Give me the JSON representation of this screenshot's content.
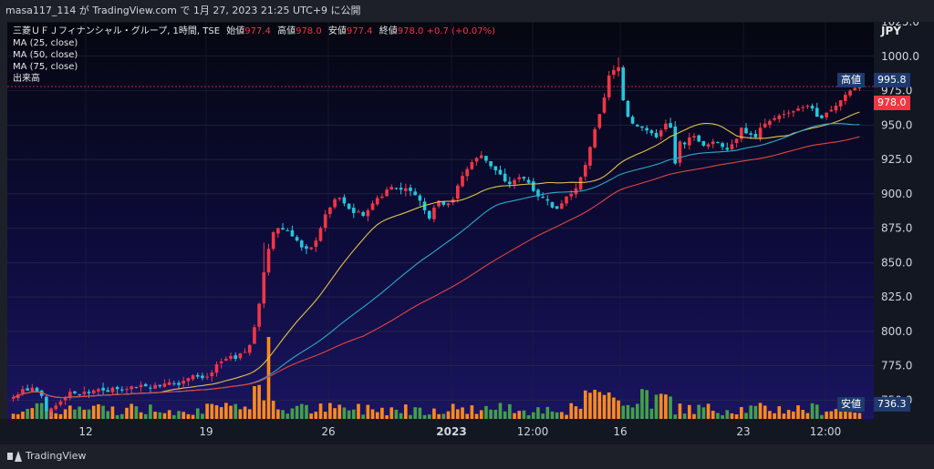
{
  "top_bar": {
    "text": "masa117_114 が TradingView.com で 1月 27, 2023 21:25 UTC+9 に公開"
  },
  "legend": {
    "symbol": "三菱ＵＦＪフィナンシャル・グループ, 1時間, TSE",
    "open_label": "始値",
    "open": "977.4",
    "high_label": "高値",
    "high": "978.0",
    "low_label": "安値",
    "low": "977.4",
    "close_label": "終値",
    "close": "978.0",
    "change": "+0.7 (+0.07%)",
    "ma1": "MA (25, close)",
    "ma2": "MA (50, close)",
    "ma3": "MA (75, close)",
    "volume": "出来高"
  },
  "price_axis": {
    "currency": "JPY"
  },
  "badges": {
    "high_label": "高値",
    "high_value": "995.8",
    "last_value": "978.0",
    "low_label": "安値",
    "low_value": "736.3"
  },
  "footer": {
    "brand": "TradingView"
  },
  "colors": {
    "up": "#f23645",
    "down": "#26c6da",
    "ma25": "#e0c14a",
    "ma50": "#2ea8c9",
    "ma75": "#e0463f",
    "vol_up": "#ff8a1f",
    "vol_down": "#43a047",
    "badge_high": "#1e3a6e",
    "badge_last": "#f23645"
  },
  "chart_data": {
    "type": "candlestick",
    "title": "三菱ＵＦＪフィナンシャル・グループ, 1時間, TSE",
    "ylabel": "JPY",
    "ylim": [
      736.3,
      1025.0
    ],
    "y_ticks": [
      750.0,
      775.0,
      800.0,
      825.0,
      850.0,
      875.0,
      900.0,
      925.0,
      950.0,
      975.0,
      1000.0,
      1025.0
    ],
    "x_ticks": [
      "12",
      "19",
      "26",
      "2023",
      "12:00",
      "16",
      "23",
      "12:00"
    ],
    "candles_close": [
      752,
      754,
      758,
      757,
      759,
      756,
      753,
      742,
      744,
      746,
      749,
      752,
      756,
      755,
      754,
      756,
      755,
      757,
      758,
      757,
      756,
      759,
      758,
      757,
      758,
      760,
      759,
      761,
      760,
      759,
      761,
      760,
      762,
      763,
      762,
      761,
      764,
      766,
      768,
      767,
      766,
      767,
      770,
      776,
      778,
      780,
      782,
      780,
      784,
      785,
      790,
      803,
      820,
      843,
      860,
      872,
      875,
      874,
      873,
      869,
      866,
      861,
      860,
      861,
      866,
      875,
      885,
      890,
      896,
      897,
      893,
      889,
      886,
      887,
      884,
      888,
      893,
      897,
      898,
      903,
      905,
      904,
      903,
      904,
      902,
      899,
      895,
      888,
      882,
      890,
      895,
      892,
      893,
      896,
      906,
      913,
      918,
      923,
      926,
      928,
      924,
      920,
      917,
      914,
      909,
      907,
      910,
      912,
      911,
      908,
      902,
      898,
      897,
      895,
      890,
      889,
      893,
      898,
      900,
      904,
      912,
      921,
      934,
      947,
      958,
      970,
      986,
      990,
      992,
      968,
      956,
      951,
      949,
      948,
      946,
      944,
      941,
      946,
      951,
      948,
      922,
      938,
      936,
      941,
      942,
      938,
      935,
      936,
      938,
      937,
      934,
      932,
      936,
      940,
      948,
      944,
      943,
      941,
      948,
      951,
      953,
      955,
      957,
      958,
      959,
      960,
      962,
      963,
      964,
      962,
      956,
      955,
      959,
      961,
      964,
      968,
      972,
      975,
      977,
      978
    ],
    "ma25_end": 960.0,
    "ma50_end": 951.0,
    "ma75_end": 949.0,
    "high": 995.8,
    "last": 978.0,
    "low": 736.3
  }
}
